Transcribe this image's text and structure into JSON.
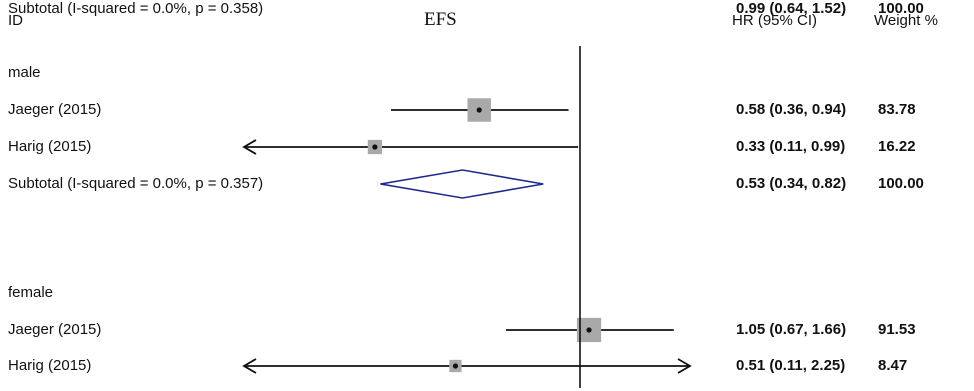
{
  "header": {
    "id_label": "ID",
    "title": "EFS",
    "hr_label": "HR (95% CI)",
    "weight_label": "Weight %"
  },
  "chart_data": {
    "type": "forest",
    "title": "EFS",
    "reference_line": 1.0,
    "x_scale": "log",
    "columns": [
      "ID",
      "HR (95% CI)",
      "Weight %"
    ],
    "groups": [
      {
        "name": "male",
        "studies": [
          {
            "label": "Jaeger (2015)",
            "hr": 0.58,
            "ci_low": 0.36,
            "ci_high": 0.94,
            "hr_text": "0.58 (0.36, 0.94)",
            "weight": 83.78,
            "weight_text": "83.78"
          },
          {
            "label": "Harig (2015)",
            "hr": 0.33,
            "ci_low": 0.11,
            "ci_high": 0.99,
            "hr_text": "0.33 (0.11, 0.99)",
            "weight": 16.22,
            "weight_text": "16.22"
          }
        ],
        "subtotal": {
          "label": "Subtotal  (I-squared = 0.0%, p = 0.357)",
          "hr": 0.53,
          "ci_low": 0.34,
          "ci_high": 0.82,
          "hr_text": "0.53 (0.34, 0.82)",
          "weight_text": "100.00"
        }
      },
      {
        "name": "female",
        "studies": [
          {
            "label": "Jaeger (2015)",
            "hr": 1.05,
            "ci_low": 0.67,
            "ci_high": 1.66,
            "hr_text": "1.05 (0.67, 1.66)",
            "weight": 91.53,
            "weight_text": "91.53"
          },
          {
            "label": "Harig (2015)",
            "hr": 0.51,
            "ci_low": 0.11,
            "ci_high": 2.25,
            "hr_text": "0.51 (0.11, 2.25)",
            "weight": 8.47,
            "weight_text": "8.47"
          }
        ],
        "subtotal": {
          "label": "Subtotal  (I-squared = 0.0%, p = 0.358)",
          "hr": 0.99,
          "ci_low": 0.64,
          "ci_high": 1.52,
          "hr_text": "0.99 (0.64, 1.52)",
          "weight_text": "100.00"
        }
      }
    ],
    "colors": {
      "line": "#111111",
      "box": "#a9a9a9",
      "diamond": "#1f2a8a"
    }
  }
}
